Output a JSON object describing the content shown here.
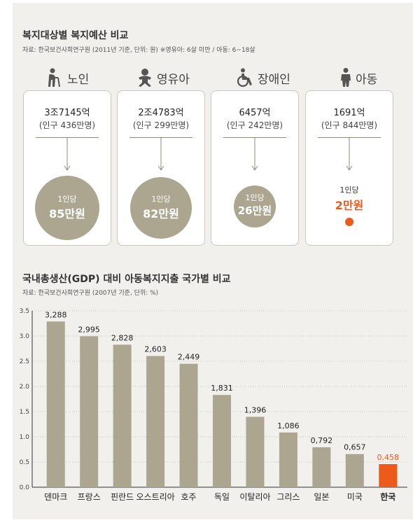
{
  "top": {
    "title": "복지대상별 복지예산 비교",
    "source": "자료: 한국보건사회연구원 (2011년 기준, 단위: 원) ※영유아: 6살 미만 / 아동: 6~18살",
    "groups": [
      {
        "name": "노인",
        "icon": "elderly-icon",
        "budget": "3조7145억",
        "population": "(인구 436만명)",
        "per_capita_label": "1인당",
        "per_capita": "85만원"
      },
      {
        "name": "영유아",
        "icon": "baby-icon",
        "budget": "2조4783억",
        "population": "(인구 299만명)",
        "per_capita_label": "1인당",
        "per_capita": "82만원"
      },
      {
        "name": "장애인",
        "icon": "wheelchair-icon",
        "budget": "6457억",
        "population": "(인구 242만명)",
        "per_capita_label": "1인당",
        "per_capita": "26만원"
      },
      {
        "name": "아동",
        "icon": "child-icon",
        "budget": "1691억",
        "population": "(인구 844만명)",
        "per_capita_label": "1인당",
        "per_capita": "2만원"
      }
    ]
  },
  "chart_data": {
    "type": "bar",
    "title": "국내총생산(GDP) 대비 아동복지지출 국가별 비교",
    "source": "자료: 한국보건사회연구원 (2007년 기준, 단위: %)",
    "categories": [
      "덴마크",
      "프랑스",
      "핀란드",
      "오스트리아",
      "호주",
      "독일",
      "이탈리아",
      "그리스",
      "일본",
      "미국",
      "한국"
    ],
    "values": [
      3.288,
      2.995,
      2.828,
      2.603,
      2.449,
      1.831,
      1.396,
      1.086,
      0.792,
      0.657,
      0.458
    ],
    "value_labels": [
      "3,288",
      "2,995",
      "2,828",
      "2,603",
      "2,449",
      "1,831",
      "1,396",
      "1,086",
      "0,792",
      "0,657",
      "0,458"
    ],
    "highlight": "한국",
    "ylim": [
      0,
      3.5
    ],
    "yticks": [
      "0.0",
      "0.5",
      "1.0",
      "1.5",
      "2.0",
      "2.5",
      "3.0",
      "3.5"
    ],
    "xlabel": "",
    "ylabel": "",
    "grid": true,
    "colors": {
      "bar": "#aca691",
      "highlight": "#ee5a1b"
    }
  }
}
